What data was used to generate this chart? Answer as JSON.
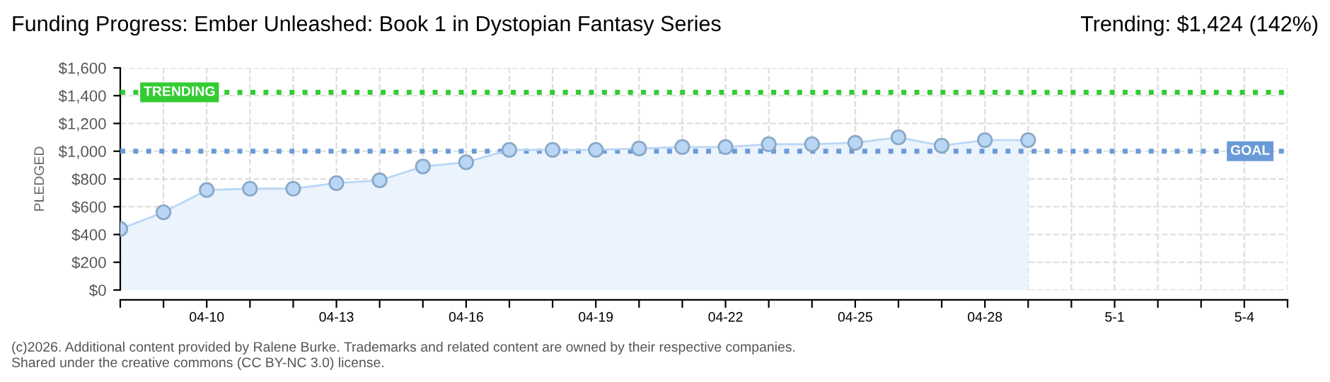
{
  "chart_data": {
    "type": "area",
    "title": "Funding Progress: Ember Unleashed: Book 1 in Dystopian Fantasy Series",
    "subtitle": "Trending: $1,424 (142%)",
    "ylabel": "PLEDGED",
    "categories": [
      null,
      null,
      "04-10",
      null,
      null,
      "04-13",
      null,
      null,
      "04-16",
      null,
      null,
      "04-19",
      null,
      null,
      "04-22",
      null,
      null,
      "04-25",
      null,
      null,
      "04-28",
      null,
      null,
      "5-1",
      null,
      null,
      "5-4",
      null
    ],
    "series": [
      {
        "color": "#b9d7f5",
        "values": [
          440,
          560,
          720,
          730,
          730,
          770,
          790,
          890,
          920,
          1010,
          1010,
          1010,
          1020,
          1030,
          1030,
          1050,
          1050,
          1060,
          1100,
          1040,
          1080,
          1080,
          null,
          null,
          null,
          null,
          null,
          null
        ]
      }
    ],
    "ylim": [
      0,
      1600
    ],
    "yticks": [
      {
        "value": 0,
        "label": "$0"
      },
      {
        "value": 200,
        "label": "$200"
      },
      {
        "value": 400,
        "label": "$400"
      },
      {
        "value": 600,
        "label": "$600"
      },
      {
        "value": 800,
        "label": "$800"
      },
      {
        "value": 1000,
        "label": "$1,000"
      },
      {
        "value": 1200,
        "label": "$1,200"
      },
      {
        "value": 1400,
        "label": "$1,400"
      },
      {
        "value": 1600,
        "label": "$1,600"
      }
    ],
    "ref_lines": [
      {
        "axis": "y",
        "value": 1424,
        "label": "TRENDING",
        "color": "#33cc33",
        "line_style": "dotted"
      },
      {
        "axis": "y",
        "value": 1000,
        "label": "GOAL",
        "color": "#6a9bd8",
        "line_style": "dotted"
      }
    ],
    "grid": true,
    "marker": "circle",
    "legend": false,
    "annotations": [
      "(c)2026. Additional content provided by Ralene Burke. Trademarks and related content are owned by their respective companies.",
      "Shared under the creative commons (CC BY-NC 3.0) license."
    ]
  }
}
